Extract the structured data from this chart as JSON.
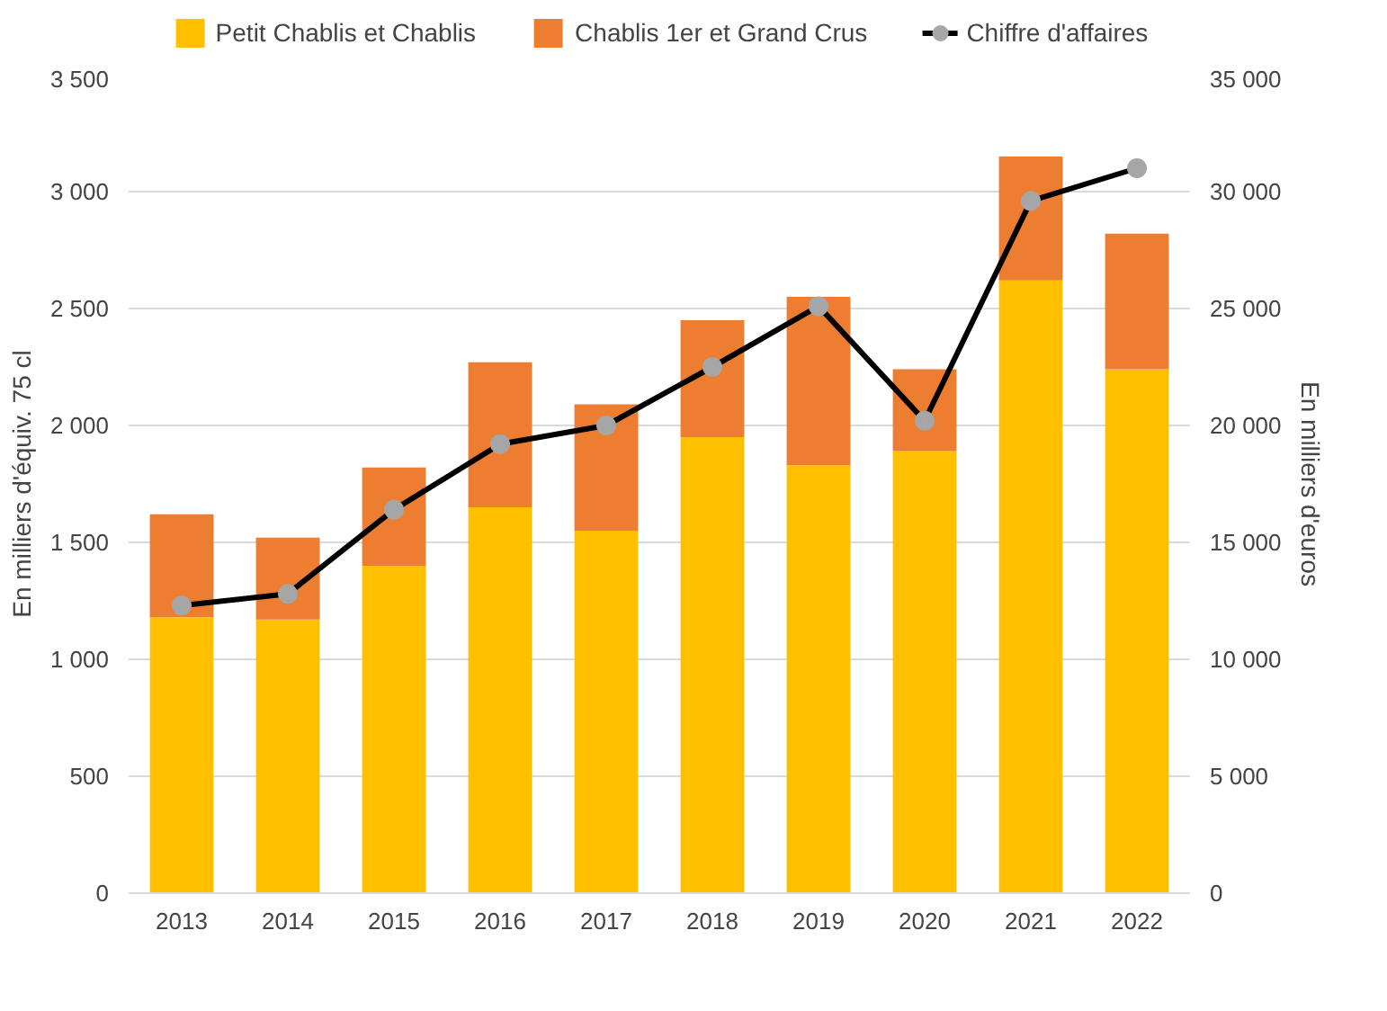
{
  "chart_data": {
    "type": "bar",
    "stacked": true,
    "categories": [
      "2013",
      "2014",
      "2015",
      "2016",
      "2017",
      "2018",
      "2019",
      "2020",
      "2021",
      "2022"
    ],
    "ylabel": "En milliers d'équiv. 75 cl",
    "y2label": "En milliers d'euros",
    "ylim": [
      0,
      3500
    ],
    "yticks": [
      0,
      500,
      {
        "value": 1000,
        "label": "1 000"
      },
      {
        "value": 1500,
        "label": "1 500"
      },
      {
        "value": 2000,
        "label": "2 000"
      },
      {
        "value": 2500,
        "label": "2 500"
      },
      {
        "value": 3000,
        "label": "3 000"
      },
      {
        "value": 3500,
        "label": "3 500"
      }
    ],
    "y2lim": [
      0,
      35000
    ],
    "y2ticks": [
      0,
      {
        "value": 5000,
        "label": "5 000"
      },
      {
        "value": 10000,
        "label": "10 000"
      },
      {
        "value": 15000,
        "label": "15 000"
      },
      {
        "value": 20000,
        "label": "20 000"
      },
      {
        "value": 25000,
        "label": "25 000"
      },
      {
        "value": 30000,
        "label": "30 000"
      },
      {
        "value": 35000,
        "label": "35 000"
      }
    ],
    "grid": "y",
    "legend": "top",
    "series": [
      {
        "name": "Petit Chablis et Chablis",
        "color": "#ffc000",
        "values": [
          1180,
          1170,
          1400,
          1650,
          1550,
          1950,
          1830,
          1890,
          2620,
          2240
        ]
      },
      {
        "name": "Chablis 1er et Grand Crus",
        "color": "#ed7d31",
        "values": [
          440,
          350,
          420,
          620,
          540,
          500,
          720,
          350,
          530,
          580
        ]
      },
      {
        "name": "Chiffre d'affaires",
        "type": "line",
        "axis": "y2",
        "color": "#000000",
        "marker": "circle",
        "values": [
          12300,
          12800,
          16400,
          19200,
          20000,
          22500,
          25100,
          20200,
          29600,
          31000
        ]
      }
    ]
  }
}
